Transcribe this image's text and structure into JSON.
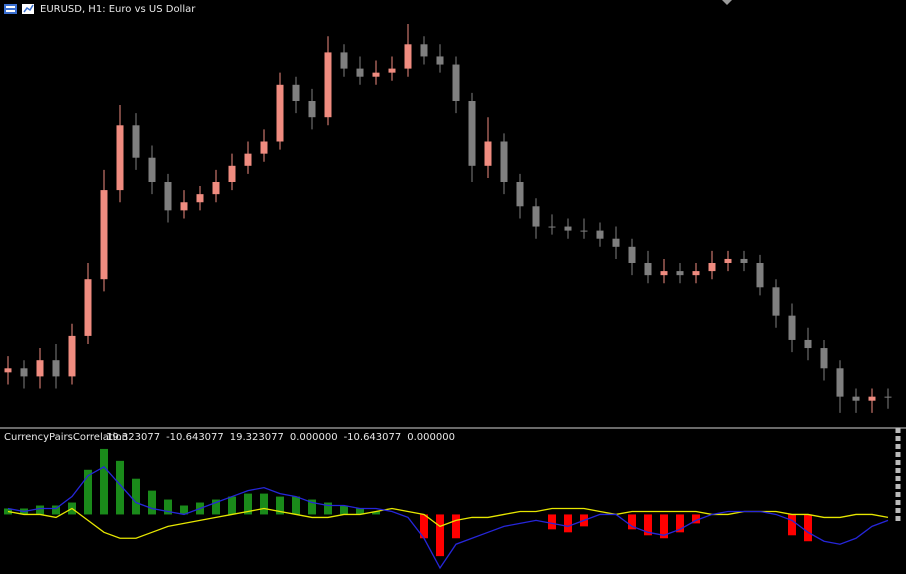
{
  "chart_data": [
    {
      "type": "candlestick",
      "title": "EURUSD, H1:  Euro vs US Dollar",
      "open": [
        13,
        14,
        12,
        16,
        12,
        22,
        36,
        58,
        74,
        66,
        60,
        53,
        55,
        57,
        60,
        64,
        67,
        70,
        84,
        80,
        76,
        92,
        88,
        86,
        87,
        88,
        94,
        91,
        89,
        80,
        64,
        70,
        60,
        54,
        49,
        49,
        48,
        48,
        46,
        44,
        40,
        37,
        38,
        37,
        38,
        40,
        41,
        40,
        34,
        27,
        21,
        19,
        14,
        7,
        6,
        7
      ],
      "high": [
        17,
        16,
        19,
        20,
        25,
        40,
        63,
        79,
        77,
        69,
        62,
        58,
        59,
        63,
        67,
        70,
        73,
        87,
        86,
        83,
        96,
        94,
        91,
        90,
        91,
        99,
        96,
        94,
        91,
        82,
        76,
        72,
        62,
        56,
        52,
        51,
        51,
        50,
        49,
        46,
        43,
        41,
        40,
        40,
        43,
        43,
        43,
        42,
        36,
        30,
        24,
        21,
        16,
        9,
        9,
        9
      ],
      "low": [
        10,
        9,
        9,
        9,
        10,
        20,
        33,
        55,
        63,
        57,
        50,
        51,
        53,
        55,
        58,
        62,
        65,
        68,
        77,
        73,
        74,
        86,
        84,
        84,
        85,
        86,
        89,
        87,
        77,
        60,
        61,
        57,
        51,
        46,
        47,
        46,
        46,
        44,
        41,
        37,
        35,
        35,
        35,
        35,
        36,
        38,
        38,
        32,
        24,
        18,
        16,
        11,
        3,
        3,
        3,
        4
      ],
      "close": [
        14,
        12,
        16,
        12,
        22,
        36,
        58,
        74,
        66,
        60,
        53,
        55,
        57,
        60,
        64,
        67,
        70,
        84,
        80,
        76,
        92,
        88,
        86,
        87,
        88,
        94,
        91,
        89,
        80,
        64,
        70,
        60,
        54,
        49,
        49,
        48,
        48,
        46,
        44,
        40,
        37,
        38,
        37,
        38,
        40,
        41,
        40,
        34,
        27,
        21,
        19,
        14,
        7,
        6,
        7,
        7
      ],
      "up_color": "#f08c80",
      "down_color": "#7f7f7f",
      "ylim": [
        0,
        100
      ]
    },
    {
      "type": "histogram",
      "title": "CurrencyPairsCorrelation",
      "readouts": [
        "19.323077",
        "-10.643077",
        "19.323077",
        "0.000000",
        "-10.643077",
        "0.000000"
      ],
      "values": [
        2,
        2,
        3,
        3,
        4,
        15,
        22,
        18,
        12,
        8,
        5,
        3,
        4,
        5,
        6,
        7,
        7,
        6,
        6,
        5,
        4,
        3,
        2,
        1,
        null,
        null,
        -8,
        -14,
        -8,
        null,
        null,
        null,
        null,
        null,
        -5,
        -6,
        -4,
        null,
        null,
        -5,
        -7,
        -8,
        -6,
        -3,
        null,
        null,
        null,
        null,
        null,
        -7,
        -9,
        null,
        null,
        null,
        null,
        null
      ],
      "positive_color": "#1a8a1a",
      "negative_color": "#ff0000",
      "series": [
        {
          "color": "#e6e600",
          "values": [
            1,
            0,
            0,
            -1,
            2,
            -2,
            -6,
            -8,
            -8,
            -6,
            -4,
            -3,
            -2,
            -1,
            0,
            1,
            2,
            1,
            0,
            -1,
            -1,
            0,
            0,
            1,
            2,
            1,
            0,
            -4,
            -2,
            -1,
            -1,
            0,
            1,
            1,
            2,
            2,
            2,
            1,
            0,
            1,
            1,
            1,
            1,
            1,
            0,
            0,
            1,
            1,
            1,
            0,
            0,
            -1,
            -1,
            0,
            0,
            -1
          ]
        },
        {
          "color": "#2626d9",
          "values": [
            2,
            1,
            2,
            2,
            6,
            13,
            16,
            10,
            4,
            2,
            1,
            0,
            2,
            4,
            6,
            8,
            9,
            7,
            6,
            4,
            3,
            3,
            2,
            2,
            1,
            -1,
            -8,
            -18,
            -10,
            -8,
            -6,
            -4,
            -3,
            -2,
            -3,
            -4,
            -2,
            0,
            0,
            -4,
            -6,
            -7,
            -5,
            -2,
            0,
            1,
            1,
            1,
            0,
            -2,
            -6,
            -9,
            -10,
            -8,
            -4,
            -2
          ]
        }
      ],
      "ylim": [
        -20,
        25
      ]
    }
  ]
}
